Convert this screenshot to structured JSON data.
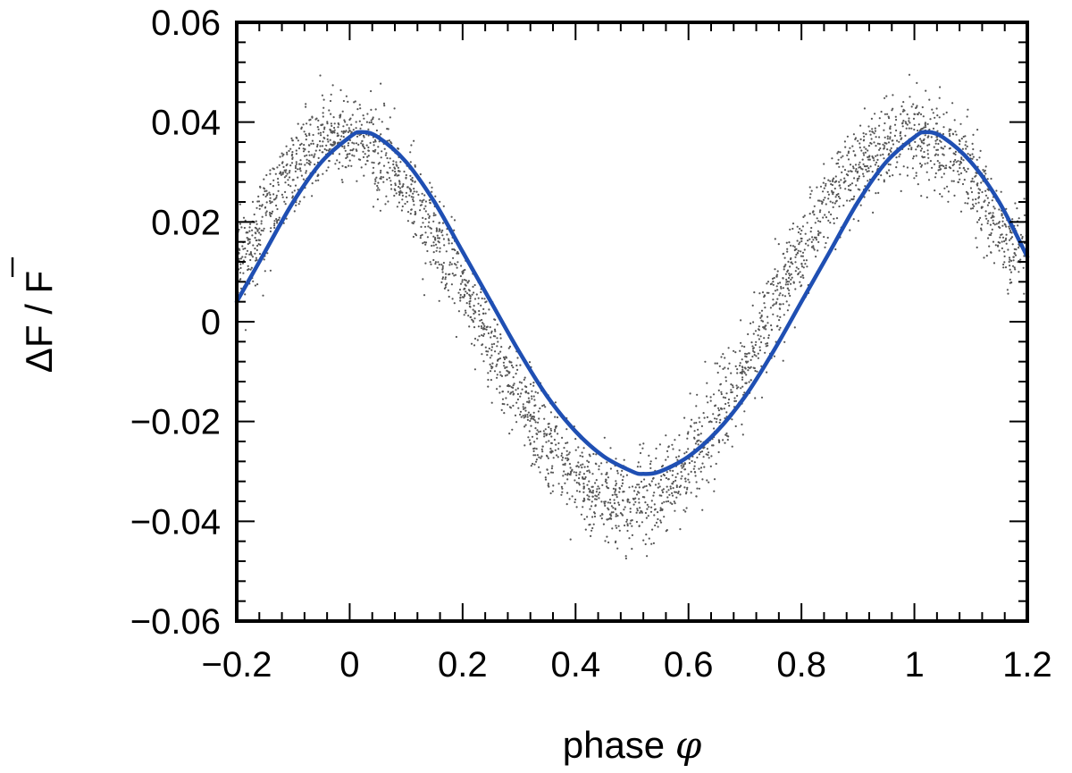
{
  "chart_data": {
    "type": "scatter",
    "xlabel": "phase",
    "xlabel_symbol": "φ",
    "ylabel": "ΔF / F",
    "xlim": [
      -0.2,
      1.2
    ],
    "ylim": [
      -0.06,
      0.06
    ],
    "x_ticks": [
      -0.2,
      0,
      0.2,
      0.4,
      0.6,
      0.8,
      1,
      1.2
    ],
    "y_ticks": [
      -0.06,
      -0.04,
      -0.02,
      0,
      0.02,
      0.04,
      0.06
    ],
    "x_tick_labels": [
      "−0.2",
      "0",
      "0.2",
      "0.4",
      "0.6",
      "0.8",
      "1",
      "1.2"
    ],
    "y_tick_labels": [
      "−0.06",
      "−0.04",
      "−0.02",
      "0",
      "0.02",
      "0.04",
      "0.06"
    ],
    "grid": false,
    "series": [
      {
        "kind": "points",
        "color": "#555555",
        "phase_range": [
          -0.2,
          1.2
        ],
        "x": [
          -0.18,
          -0.15,
          -0.12,
          -0.09,
          -0.06,
          -0.03,
          0.0,
          0.03,
          0.06,
          0.09,
          0.12,
          0.15,
          0.18,
          0.21,
          0.24,
          0.27,
          0.3,
          0.33,
          0.36,
          0.39,
          0.42,
          0.45,
          0.48,
          0.51,
          0.54,
          0.57,
          0.6,
          0.63,
          0.66,
          0.69,
          0.72,
          0.75,
          0.78,
          0.81,
          0.84,
          0.87,
          0.9,
          0.93,
          0.96,
          0.99,
          1.02,
          1.05,
          1.08,
          1.11,
          1.14,
          1.17
        ],
        "y": [
          0.014,
          0.021,
          0.027,
          0.032,
          0.035,
          0.037,
          0.037,
          0.036,
          0.033,
          0.029,
          0.023,
          0.017,
          0.011,
          0.004,
          -0.003,
          -0.009,
          -0.015,
          -0.021,
          -0.026,
          -0.03,
          -0.033,
          -0.035,
          -0.036,
          -0.036,
          -0.035,
          -0.033,
          -0.029,
          -0.024,
          -0.018,
          -0.011,
          -0.004,
          0.003,
          0.01,
          0.016,
          0.022,
          0.027,
          0.031,
          0.034,
          0.036,
          0.037,
          0.037,
          0.035,
          0.032,
          0.027,
          0.021,
          0.015
        ]
      },
      {
        "kind": "fit-curve",
        "color": "#1f4fb3",
        "x": [
          -0.2,
          -0.15,
          -0.1,
          -0.05,
          0.0,
          0.02,
          0.05,
          0.1,
          0.15,
          0.2,
          0.25,
          0.3,
          0.35,
          0.4,
          0.45,
          0.5,
          0.52,
          0.55,
          0.6,
          0.65,
          0.7,
          0.75,
          0.8,
          0.85,
          0.9,
          0.95,
          1.0,
          1.02,
          1.05,
          1.1,
          1.15,
          1.2
        ],
        "y": [
          0.004,
          0.014,
          0.024,
          0.032,
          0.037,
          0.038,
          0.037,
          0.032,
          0.024,
          0.014,
          0.004,
          -0.006,
          -0.015,
          -0.022,
          -0.027,
          -0.03,
          -0.0305,
          -0.03,
          -0.027,
          -0.022,
          -0.015,
          -0.006,
          0.004,
          0.014,
          0.024,
          0.032,
          0.037,
          0.038,
          0.037,
          0.032,
          0.024,
          0.013
        ]
      }
    ]
  }
}
